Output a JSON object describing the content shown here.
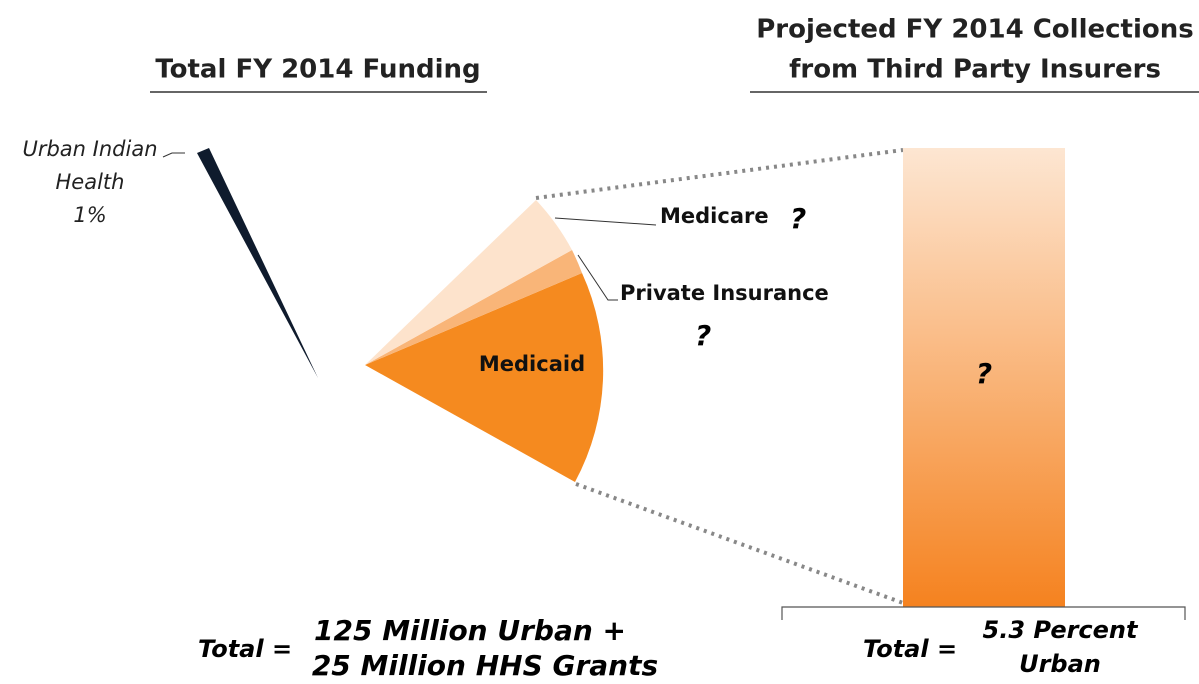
{
  "left_title": "Total FY 2014 Funding",
  "right_title": [
    "Projected FY 2014 Collections",
    "from Third Party Insurers"
  ],
  "slice_label": [
    "Urban Indian",
    "Health",
    "1%"
  ],
  "wedge_labels": {
    "medicare": "Medicare",
    "medicare_value": "?",
    "private": "Private Insurance",
    "private_value": "?",
    "medicaid": "Medicaid"
  },
  "bar_label": "?",
  "left_total": {
    "label": "Total =",
    "lines": [
      "125 Million Urban +",
      "25 Million HHS Grants"
    ]
  },
  "right_total": {
    "label": "Total =",
    "lines": [
      "5.3 Percent",
      "Urban"
    ]
  }
}
